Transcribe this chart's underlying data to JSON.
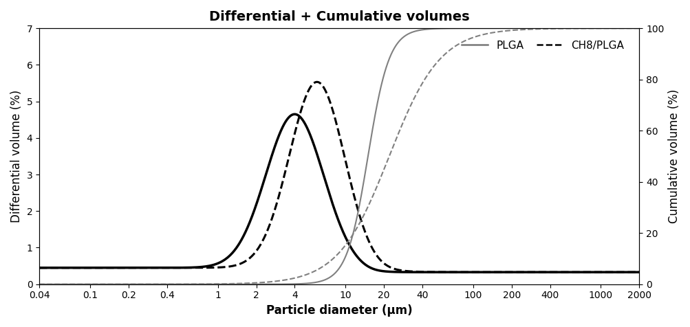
{
  "title": "Differential + Cumulative volumes",
  "xlabel": "Particle diameter (μm)",
  "ylabel_left": "Differential volume (%)",
  "ylabel_right": "Cumulative volume (%)",
  "ylim_left": [
    0,
    7
  ],
  "ylim_right": [
    0,
    100
  ],
  "xlim": [
    0.04,
    2000
  ],
  "xtick_labels": [
    "0.04",
    "0.1",
    "0.2",
    "0.4",
    "1",
    "2",
    "4",
    "10",
    "20",
    "40",
    "100",
    "200",
    "400",
    "1000",
    "2000"
  ],
  "xtick_values": [
    0.04,
    0.1,
    0.2,
    0.4,
    1,
    2,
    4,
    10,
    20,
    40,
    100,
    200,
    400,
    1000,
    2000
  ],
  "plga_diff_color": "#000000",
  "plga_cum_color": "#808080",
  "ch8_diff_color": "#000000",
  "ch8_cum_color": "#808080",
  "plga_diff_lw": 2.5,
  "plga_cum_lw": 1.5,
  "ch8_diff_lw": 2.2,
  "ch8_cum_lw": 1.5,
  "background_color": "#ffffff",
  "title_fontsize": 14,
  "label_fontsize": 12,
  "tick_fontsize": 10,
  "plga_diff_peak_mu": 4.0,
  "plga_diff_peak_sigma": 0.52,
  "plga_diff_peak_scale": 4.2,
  "ch8_diff_peak_mu": 6.0,
  "ch8_diff_peak_sigma": 0.5,
  "ch8_diff_peak_scale": 5.1,
  "plga_cum_x50": 15.0,
  "plga_cum_k": 12.0,
  "ch8_cum_x50": 22.0,
  "ch8_cum_k": 5.0,
  "baseline": 0.45
}
